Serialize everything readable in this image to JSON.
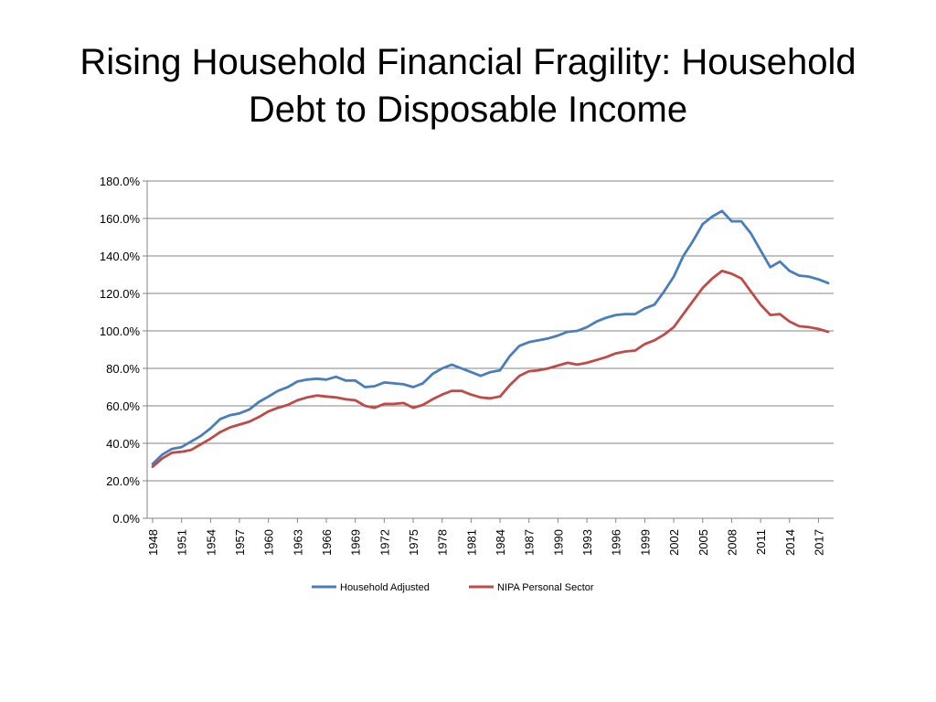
{
  "slide": {
    "title_line1": "Rising Household Financial Fragility: Household",
    "title_line2": "Debt to Disposable Income"
  },
  "chart_data": {
    "type": "line",
    "title": "",
    "xlabel": "",
    "ylabel": "",
    "ylim": [
      0,
      180
    ],
    "y_tick_labels": [
      "0.0%",
      "20.0%",
      "40.0%",
      "60.0%",
      "80.0%",
      "100.0%",
      "120.0%",
      "140.0%",
      "160.0%",
      "180.0%"
    ],
    "x_tick_labels": [
      "1948",
      "1951",
      "1954",
      "1957",
      "1960",
      "1963",
      "1966",
      "1969",
      "1972",
      "1975",
      "1978",
      "1981",
      "1984",
      "1987",
      "1990",
      "1993",
      "1996",
      "1999",
      "2002",
      "2005",
      "2008",
      "2011",
      "2014",
      "2017"
    ],
    "grid": "horizontal",
    "legend_position": "bottom",
    "x": [
      1948,
      1949,
      1950,
      1951,
      1952,
      1953,
      1954,
      1955,
      1956,
      1957,
      1958,
      1959,
      1960,
      1961,
      1962,
      1963,
      1964,
      1965,
      1966,
      1967,
      1968,
      1969,
      1970,
      1971,
      1972,
      1973,
      1974,
      1975,
      1976,
      1977,
      1978,
      1979,
      1980,
      1981,
      1982,
      1983,
      1984,
      1985,
      1986,
      1987,
      1988,
      1989,
      1990,
      1991,
      1992,
      1993,
      1994,
      1995,
      1996,
      1997,
      1998,
      1999,
      2000,
      2001,
      2002,
      2003,
      2004,
      2005,
      2006,
      2007,
      2008,
      2009,
      2010,
      2011,
      2012,
      2013,
      2014,
      2015,
      2016,
      2017,
      2018
    ],
    "series": [
      {
        "name": "Household Adjusted",
        "color": "#4A7EBB",
        "values": [
          29,
          34,
          37,
          38,
          41,
          44,
          48,
          53,
          55,
          56,
          58,
          62,
          65,
          68,
          70,
          73,
          74,
          74.5,
          74,
          75.5,
          73.5,
          73.5,
          70,
          70.5,
          72.5,
          72,
          71.5,
          70,
          72,
          77,
          80,
          82,
          80,
          78,
          76,
          78,
          79,
          86.5,
          92,
          94,
          95,
          96,
          97.5,
          99.5,
          100,
          102,
          105,
          107,
          108.5,
          109,
          109,
          112,
          114,
          121,
          129,
          140,
          148,
          157,
          161,
          164,
          158.5,
          158.5,
          152,
          143,
          134,
          137,
          132,
          129.5,
          129,
          127.5,
          125.5
        ]
      },
      {
        "name": "NIPA Personal Sector",
        "color": "#BE4B48",
        "values": [
          27.5,
          32,
          35,
          35.5,
          36.5,
          39.5,
          42.5,
          46,
          48.5,
          50,
          51.5,
          54,
          57,
          59,
          60.5,
          63,
          64.5,
          65.5,
          65,
          64.5,
          63.5,
          63,
          60,
          59,
          61,
          61,
          61.5,
          59,
          60.5,
          63.5,
          66,
          68,
          68,
          66,
          64.5,
          64,
          65,
          71,
          76,
          78.5,
          79,
          80,
          81.5,
          83,
          82,
          83,
          84.5,
          86,
          88,
          89,
          89.5,
          93,
          95,
          98,
          102,
          109,
          116,
          123,
          128,
          132,
          130.5,
          128,
          121,
          114,
          108.5,
          109,
          105,
          102.5,
          102,
          101,
          99.5
        ]
      }
    ]
  }
}
